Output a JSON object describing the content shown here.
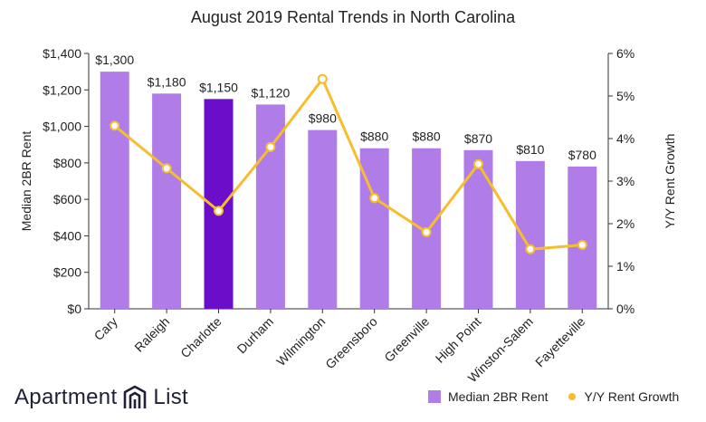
{
  "chart_data": {
    "type": "bar",
    "title": "August 2019 Rental Trends in North Carolina",
    "categories": [
      "Cary",
      "Raleigh",
      "Charlotte",
      "Durham",
      "Wilmington",
      "Greensboro",
      "Greenville",
      "High Point",
      "Winston-Salem",
      "Fayetteville"
    ],
    "series": [
      {
        "name": "Median 2BR Rent",
        "kind": "bar",
        "axis": "left",
        "values": [
          1300,
          1180,
          1150,
          1120,
          980,
          880,
          880,
          870,
          810,
          780
        ],
        "labels": [
          "$1,300",
          "$1,180",
          "$1,150",
          "$1,120",
          "$980",
          "$880",
          "$880",
          "$870",
          "$810",
          "$780"
        ]
      },
      {
        "name": "Y/Y Rent Growth",
        "kind": "line",
        "axis": "right",
        "values": [
          4.3,
          3.3,
          2.3,
          3.8,
          5.4,
          2.6,
          1.8,
          3.4,
          1.4,
          1.5
        ]
      }
    ],
    "highlight_index": 2,
    "ylabel": "Median 2BR Rent",
    "ylim": [
      0,
      1400
    ],
    "yticks": [
      "$0",
      "$200",
      "$400",
      "$600",
      "$800",
      "$1,000",
      "$1,200",
      "$1,400"
    ],
    "y2label": "Y/Y Rent Growth",
    "y2lim": [
      0,
      6
    ],
    "y2ticks": [
      "0%",
      "1%",
      "2%",
      "3%",
      "4%",
      "5%",
      "6%"
    ],
    "legend_position": "bottom-right",
    "grid": false,
    "colors": {
      "bar": "#b07ce8",
      "bar_highlight": "#6a0ec9",
      "line": "#f6bd2c",
      "marker_fill": "#ffffff"
    }
  },
  "branding": {
    "logo_text_left": "Apartment",
    "logo_text_right": "List"
  },
  "legend": {
    "bar_label": "Median 2BR Rent",
    "line_label": "Y/Y Rent Growth"
  }
}
